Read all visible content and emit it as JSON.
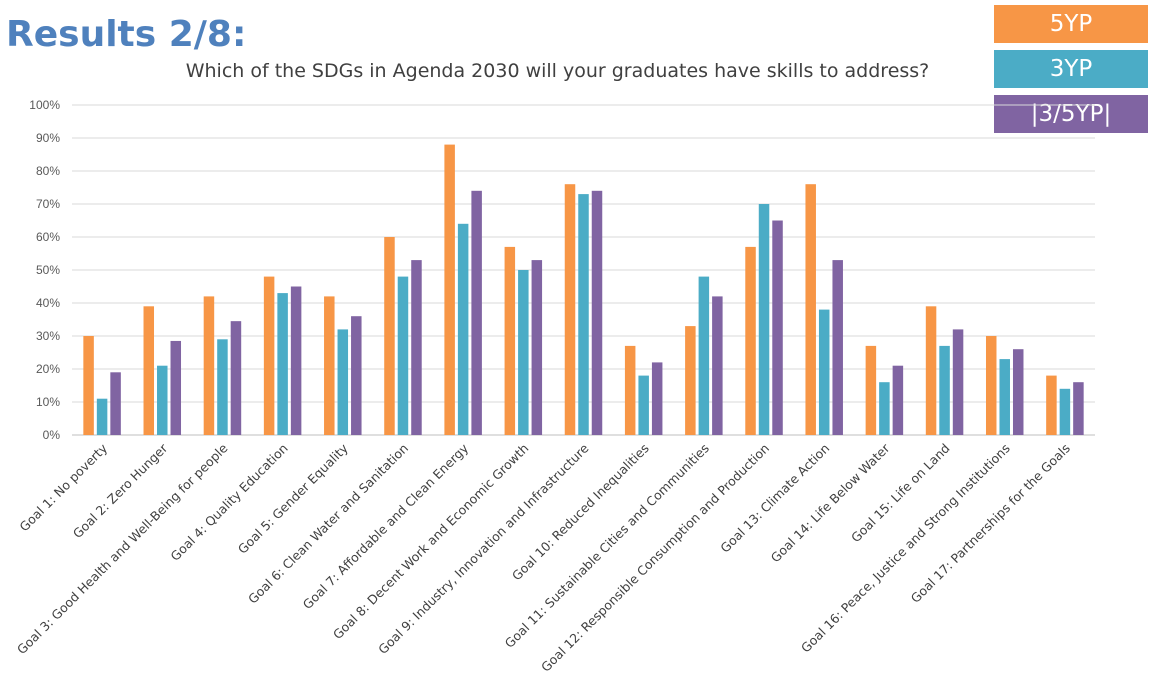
{
  "header": {
    "title": "Results 2/8:",
    "question": "Which of the SDGs in Agenda 2030 will your graduates have skills to address?"
  },
  "colors": {
    "5YP": "#F79646",
    "3YP": "#4BACC6",
    "3/5YP": "#8064A2",
    "grid": "#D9D9D9"
  },
  "legend": [
    {
      "label": "5YP",
      "color": "#F79646"
    },
    {
      "label": "3YP",
      "color": "#4BACC6"
    },
    {
      "label": "|3/5YP|",
      "color": "#8064A2"
    }
  ],
  "chart_data": {
    "type": "bar",
    "categories": [
      "Goal 1: No poverty",
      "Goal 2: Zero Hunger",
      "Goal 3: Good Health and Well-Being for people",
      "Goal 4: Quality Education",
      "Goal 5: Gender Equality",
      "Goal 6: Clean Water and Sanitation",
      "Goal 7: Affordable and Clean Energy",
      "Goal 8: Decent Work and Economic Growth",
      "Goal 9: Industry, Innovation and Infrastructure",
      "Goal 10: Reduced Inequalities",
      "Goal 11: Sustainable Cities and Communities",
      "Goal 12: Responsible Consumption and Production",
      "Goal 13: Climate Action",
      "Goal 14: Life Below Water",
      "Goal 15: Life on Land",
      "Goal 16: Peace, Justice and Strong Institutions",
      "Goal 17: Partnerships for the Goals"
    ],
    "series": [
      {
        "name": "5YP",
        "color": "#F79646",
        "values": [
          30,
          39,
          42,
          48,
          42,
          60,
          88,
          57,
          76,
          27,
          33,
          57,
          76,
          27,
          39,
          30,
          18
        ]
      },
      {
        "name": "3YP",
        "color": "#4BACC6",
        "values": [
          11,
          21,
          29,
          43,
          32,
          48,
          64,
          50,
          73,
          18,
          48,
          70,
          38,
          16,
          27,
          23,
          14
        ]
      },
      {
        "name": "|3/5YP|",
        "color": "#8064A2",
        "values": [
          19,
          28.5,
          34.5,
          45,
          36,
          53,
          74,
          53,
          74,
          22,
          42,
          65,
          53,
          21,
          32,
          26,
          16
        ]
      }
    ],
    "y_ticks": [
      "0%",
      "10%",
      "20%",
      "30%",
      "40%",
      "50%",
      "60%",
      "70%",
      "80%",
      "90%",
      "100%"
    ],
    "ylim": [
      0,
      100
    ],
    "grid": true,
    "legend_position": "top-right"
  }
}
